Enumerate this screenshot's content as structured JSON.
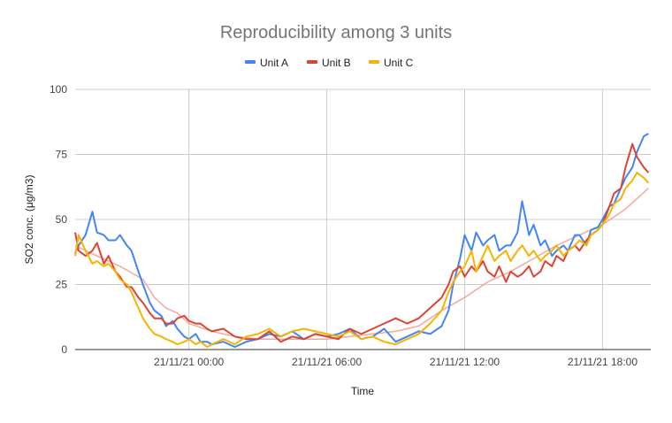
{
  "chart_data": {
    "type": "line",
    "title": "Reproducibility among 3 units",
    "xlabel": "Time",
    "ylabel": "SO2 conc. (μg/m3)",
    "ylim": [
      0,
      100
    ],
    "yticks": [
      "0",
      "25",
      "50",
      "75",
      "100"
    ],
    "xticks": [
      {
        "label": "21/11/21 00:00",
        "hour": 0
      },
      {
        "label": "21/11/21 06:00",
        "hour": 6
      },
      {
        "label": "21/11/21 12:00",
        "hour": 12
      },
      {
        "label": "21/11/21 18:00",
        "hour": 18
      }
    ],
    "x_unit": "hours relative to 21/11/21 00:00",
    "xlim": [
      -4.95,
      20.1
    ],
    "grid": true,
    "legend_position": "top",
    "series": [
      {
        "name": "Unit A",
        "color": "#4285F4",
        "x": [
          -5.0,
          -4.8,
          -4.5,
          -4.2,
          -4.0,
          -3.7,
          -3.5,
          -3.2,
          -3.0,
          -2.7,
          -2.5,
          -2.2,
          -2.0,
          -1.7,
          -1.5,
          -1.2,
          -1.0,
          -0.7,
          -0.5,
          -0.2,
          0.0,
          0.3,
          0.5,
          0.8,
          1.0,
          1.5,
          2.0,
          2.5,
          3.0,
          3.5,
          4.0,
          4.5,
          5.0,
          5.5,
          6.0,
          6.5,
          7.0,
          7.5,
          8.0,
          8.5,
          9.0,
          9.5,
          10.0,
          10.5,
          11.0,
          11.3,
          11.5,
          11.8,
          12.0,
          12.3,
          12.5,
          12.8,
          13.0,
          13.3,
          13.5,
          13.8,
          14.0,
          14.3,
          14.5,
          14.8,
          15.0,
          15.3,
          15.5,
          15.8,
          16.0,
          16.3,
          16.5,
          16.8,
          17.0,
          17.3,
          17.5,
          17.8,
          18.0,
          18.3,
          18.5,
          18.8,
          19.0,
          19.3,
          19.5,
          19.8,
          20.0
        ],
        "values": [
          37,
          40,
          44,
          53,
          45,
          44,
          42,
          42,
          44,
          40,
          38,
          30,
          25,
          18,
          15,
          13,
          9,
          11,
          8,
          5,
          4,
          6,
          3,
          3,
          2,
          3,
          1,
          3,
          4,
          6,
          5,
          7,
          4,
          6,
          5,
          6,
          8,
          4,
          5,
          8,
          3,
          5,
          7,
          6,
          9,
          15,
          25,
          35,
          44,
          38,
          45,
          40,
          42,
          44,
          38,
          40,
          40,
          45,
          57,
          44,
          48,
          40,
          42,
          36,
          38,
          40,
          38,
          44,
          44,
          40,
          46,
          47,
          50,
          55,
          56,
          62,
          66,
          70,
          76,
          82,
          83
        ]
      },
      {
        "name": "Unit B",
        "color": "#DB4437",
        "x": [
          -5.0,
          -4.8,
          -4.5,
          -4.2,
          -4.0,
          -3.7,
          -3.5,
          -3.2,
          -3.0,
          -2.7,
          -2.5,
          -2.2,
          -2.0,
          -1.7,
          -1.5,
          -1.2,
          -1.0,
          -0.7,
          -0.5,
          -0.2,
          0.0,
          0.3,
          0.5,
          0.8,
          1.0,
          1.5,
          2.0,
          2.5,
          3.0,
          3.5,
          4.0,
          4.5,
          5.0,
          5.5,
          6.0,
          6.5,
          7.0,
          7.5,
          8.0,
          8.5,
          9.0,
          9.5,
          10.0,
          10.5,
          11.0,
          11.3,
          11.5,
          11.8,
          12.0,
          12.3,
          12.5,
          12.8,
          13.0,
          13.3,
          13.5,
          13.8,
          14.0,
          14.3,
          14.5,
          14.8,
          15.0,
          15.3,
          15.5,
          15.8,
          16.0,
          16.3,
          16.5,
          16.8,
          17.0,
          17.3,
          17.5,
          17.8,
          18.0,
          18.3,
          18.5,
          18.8,
          19.0,
          19.3,
          19.5,
          19.8,
          20.0
        ],
        "values": [
          45,
          38,
          36,
          38,
          41,
          33,
          36,
          30,
          28,
          24,
          24,
          20,
          18,
          14,
          12,
          12,
          10,
          10,
          12,
          13,
          11,
          10,
          10,
          8,
          7,
          8,
          5,
          4,
          4,
          7,
          3,
          5,
          4,
          6,
          5,
          4,
          8,
          6,
          8,
          10,
          12,
          10,
          12,
          16,
          20,
          25,
          30,
          32,
          28,
          32,
          30,
          34,
          30,
          28,
          32,
          26,
          30,
          28,
          29,
          32,
          28,
          30,
          34,
          32,
          36,
          34,
          38,
          40,
          38,
          42,
          44,
          46,
          48,
          55,
          60,
          62,
          70,
          79,
          74,
          70,
          68
        ]
      },
      {
        "name": "Unit C",
        "color": "#F4B400",
        "x": [
          -5.0,
          -4.8,
          -4.5,
          -4.2,
          -4.0,
          -3.7,
          -3.5,
          -3.2,
          -3.0,
          -2.7,
          -2.5,
          -2.2,
          -2.0,
          -1.7,
          -1.5,
          -1.2,
          -1.0,
          -0.7,
          -0.5,
          -0.2,
          0.0,
          0.3,
          0.5,
          0.8,
          1.0,
          1.5,
          2.0,
          2.5,
          3.0,
          3.5,
          4.0,
          4.5,
          5.0,
          5.5,
          6.0,
          6.5,
          7.0,
          7.5,
          8.0,
          8.5,
          9.0,
          9.5,
          10.0,
          10.5,
          11.0,
          11.3,
          11.5,
          11.8,
          12.0,
          12.3,
          12.5,
          12.8,
          13.0,
          13.3,
          13.5,
          13.8,
          14.0,
          14.3,
          14.5,
          14.8,
          15.0,
          15.3,
          15.5,
          15.8,
          16.0,
          16.3,
          16.5,
          16.8,
          17.0,
          17.3,
          17.5,
          17.8,
          18.0,
          18.3,
          18.5,
          18.8,
          19.0,
          19.3,
          19.5,
          19.8,
          20.0
        ],
        "values": [
          36,
          44,
          38,
          33,
          34,
          32,
          33,
          30,
          27,
          25,
          22,
          16,
          12,
          8,
          6,
          5,
          4,
          3,
          2,
          3,
          4,
          2,
          3,
          1,
          2,
          4,
          2,
          5,
          6,
          8,
          5,
          7,
          8,
          7,
          6,
          5,
          7,
          4,
          5,
          3,
          2,
          4,
          6,
          10,
          15,
          22,
          26,
          30,
          32,
          38,
          30,
          36,
          40,
          34,
          36,
          38,
          34,
          38,
          40,
          36,
          38,
          34,
          36,
          38,
          40,
          36,
          38,
          40,
          42,
          40,
          44,
          46,
          48,
          52,
          56,
          58,
          62,
          65,
          68,
          66,
          64
        ]
      },
      {
        "name": "",
        "color": "#F4A89A",
        "x": [
          -5.0,
          -4.0,
          -3.0,
          -2.0,
          -1.5,
          -1.0,
          -0.5,
          0.0,
          1.0,
          2.0,
          3.0,
          4.0,
          5.0,
          6.0,
          7.0,
          8.0,
          9.0,
          10.0,
          11.0,
          12.0,
          13.0,
          14.0,
          15.0,
          16.0,
          17.0,
          18.0,
          19.0,
          20.0
        ],
        "values": [
          40,
          36,
          32,
          27,
          20,
          16,
          14,
          10,
          7,
          5,
          4,
          4,
          4,
          4,
          5,
          6,
          7,
          9,
          15,
          20,
          26,
          30,
          35,
          40,
          44,
          48,
          54,
          62
        ]
      }
    ]
  }
}
